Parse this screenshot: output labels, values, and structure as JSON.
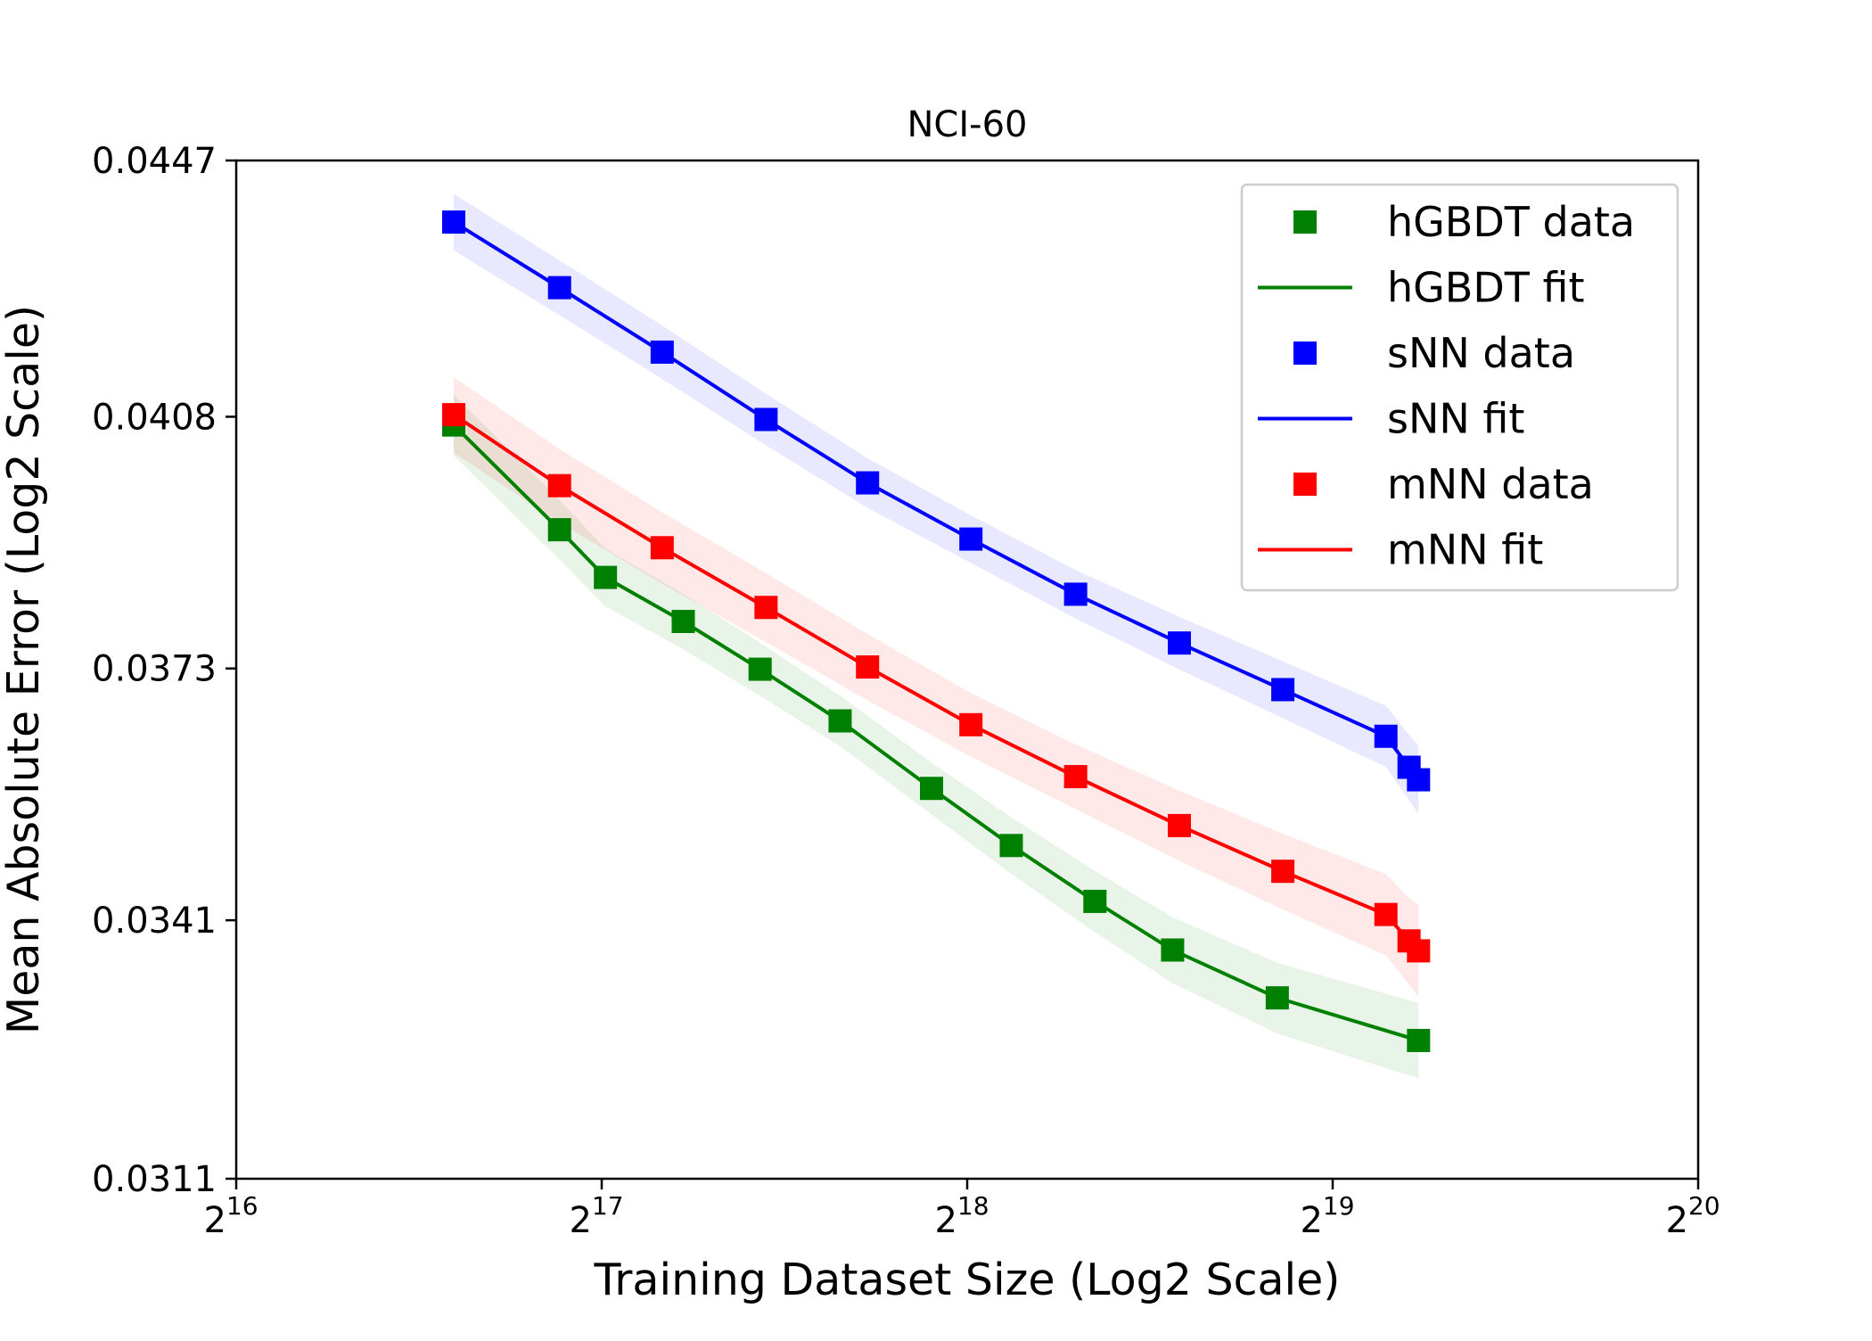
{
  "chart_data": {
    "type": "line",
    "title": "NCI-60",
    "xlabel": "Training Dataset Size (Log2 Scale)",
    "ylabel": "Mean Absolute Error (Log2 Scale)",
    "x_scale": "log2",
    "y_scale": "log2",
    "xlim": [
      65536,
      1048576
    ],
    "ylim": [
      0.0311,
      0.0447
    ],
    "x_ticks": [
      {
        "value": 65536,
        "base": "2",
        "exp": "16"
      },
      {
        "value": 131072,
        "base": "2",
        "exp": "17"
      },
      {
        "value": 262144,
        "base": "2",
        "exp": "18"
      },
      {
        "value": 524288,
        "base": "2",
        "exp": "19"
      },
      {
        "value": 1048576,
        "base": "2",
        "exp": "20"
      }
    ],
    "y_ticks": [
      {
        "value": 0.0311,
        "label": "0.0311"
      },
      {
        "value": 0.0341,
        "label": "0.0341"
      },
      {
        "value": 0.0373,
        "label": "0.0373"
      },
      {
        "value": 0.0408,
        "label": "0.0408"
      },
      {
        "value": 0.0447,
        "label": "0.0447"
      }
    ],
    "grid": false,
    "legend_position": "top-right",
    "legend": [
      {
        "label": "hGBDT data",
        "kind": "marker",
        "series": "hGBDT"
      },
      {
        "label": "hGBDT fit",
        "kind": "line",
        "series": "hGBDT"
      },
      {
        "label": "sNN data",
        "kind": "marker",
        "series": "sNN"
      },
      {
        "label": "sNN fit",
        "kind": "line",
        "series": "sNN"
      },
      {
        "label": "mNN data",
        "kind": "marker",
        "series": "mNN"
      },
      {
        "label": "mNN fit",
        "kind": "line",
        "series": "mNN"
      }
    ],
    "series": [
      {
        "name": "hGBDT",
        "color": "#008000",
        "x": [
          99000,
          121000,
          132000,
          153000,
          177000,
          206000,
          245000,
          285000,
          334000,
          387000,
          472000,
          617000
        ],
        "y": [
          0.04068,
          0.03919,
          0.03853,
          0.03793,
          0.03729,
          0.03661,
          0.03574,
          0.03502,
          0.03433,
          0.03374,
          0.03317,
          0.03267
        ],
        "band": 0.0004
      },
      {
        "name": "sNN",
        "color": "#0000ff",
        "x": [
          99000,
          121000,
          147000,
          179000,
          217000,
          264000,
          322000,
          392000,
          477000,
          580000,
          606000,
          617000
        ],
        "y": [
          0.04373,
          0.04272,
          0.04175,
          0.04076,
          0.03985,
          0.03906,
          0.0383,
          0.03764,
          0.03702,
          0.03641,
          0.03601,
          0.03585
        ],
        "band": 0.0004
      },
      {
        "name": "mNN",
        "color": "#ff0000",
        "x": [
          99000,
          121000,
          147000,
          179000,
          217000,
          264000,
          322000,
          392000,
          477000,
          580000,
          606000,
          617000
        ],
        "y": [
          0.04083,
          0.03981,
          0.03894,
          0.03812,
          0.03732,
          0.03656,
          0.03589,
          0.03527,
          0.0347,
          0.03417,
          0.03385,
          0.03373
        ],
        "band": 0.0005
      }
    ]
  }
}
